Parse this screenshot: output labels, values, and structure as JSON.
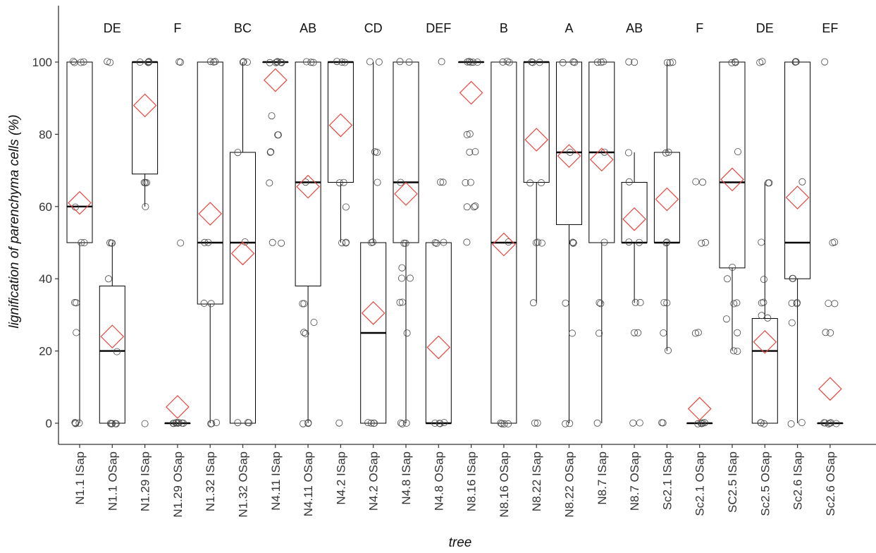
{
  "chart_data": {
    "type": "boxplot",
    "xlabel": "tree",
    "ylabel": "lignification of parenchyma cells (%)",
    "ylim": [
      -5,
      115
    ],
    "yticks": [
      0,
      20,
      40,
      60,
      80,
      100
    ],
    "grid": false,
    "legend": "none",
    "colors": {
      "box": "#000000",
      "mean_marker": "#e8473f",
      "points": "#000000"
    },
    "categories": [
      "N1.1 ISap",
      "N1.1 OSap",
      "N1.29 ISap",
      "N1.29 OSap",
      "N1.32 ISap",
      "N1.32 OSap",
      "N4.11 ISap",
      "N4.11 OSap",
      "N4.2 ISap",
      "N4.2 OSap",
      "N4.8 ISap",
      "N4.8 OSap",
      "N8.16 ISap",
      "N8.16 OSap",
      "N8.22 ISap",
      "N8.22 OSap",
      "N8.7 ISap",
      "N8.7 OSap",
      "Sc2.1 ISap",
      "Sc2.1 OSap",
      "SC2.5 ISap",
      "Sc2.5 OSap",
      "Sc2.6 ISap",
      "Sc2.6 OSap"
    ],
    "boxes": [
      {
        "q1": 50,
        "median": 60,
        "q3": 100,
        "whisker_low": 0,
        "whisker_high": 100,
        "mean": 61
      },
      {
        "q1": 0,
        "median": 20,
        "q3": 38,
        "whisker_low": 0,
        "whisker_high": 50,
        "mean": 24
      },
      {
        "q1": 69,
        "median": 100,
        "q3": 100,
        "whisker_low": 60,
        "whisker_high": 100,
        "mean": 88
      },
      {
        "q1": 0,
        "median": 0,
        "q3": 0,
        "whisker_low": 0,
        "whisker_high": 0,
        "mean": 4.5
      },
      {
        "q1": 33,
        "median": 50,
        "q3": 100,
        "whisker_low": 0,
        "whisker_high": 100,
        "mean": 58
      },
      {
        "q1": 0,
        "median": 50,
        "q3": 75,
        "whisker_low": 0,
        "whisker_high": 100,
        "mean": 47
      },
      {
        "q1": 100,
        "median": 100,
        "q3": 100,
        "whisker_low": 100,
        "whisker_high": 100,
        "mean": 95
      },
      {
        "q1": 38,
        "median": 66.7,
        "q3": 100,
        "whisker_low": 0,
        "whisker_high": 100,
        "mean": 65.5
      },
      {
        "q1": 66.7,
        "median": 100,
        "q3": 100,
        "whisker_low": 50,
        "whisker_high": 100,
        "mean": 82.5
      },
      {
        "q1": 0,
        "median": 25,
        "q3": 50,
        "whisker_low": 0,
        "whisker_high": 100,
        "mean": 30.5
      },
      {
        "q1": 50,
        "median": 66.7,
        "q3": 100,
        "whisker_low": 0,
        "whisker_high": 100,
        "mean": 63.5
      },
      {
        "q1": 0,
        "median": 0,
        "q3": 50,
        "whisker_low": 0,
        "whisker_high": 50,
        "mean": 21
      },
      {
        "q1": 100,
        "median": 100,
        "q3": 100,
        "whisker_low": 100,
        "whisker_high": 100,
        "mean": 91.5
      },
      {
        "q1": 0,
        "median": 50,
        "q3": 100,
        "whisker_low": 0,
        "whisker_high": 100,
        "mean": 49.5
      },
      {
        "q1": 66.7,
        "median": 100,
        "q3": 100,
        "whisker_low": 33.3,
        "whisker_high": 100,
        "mean": 78.5
      },
      {
        "q1": 55,
        "median": 75,
        "q3": 100,
        "whisker_low": 0,
        "whisker_high": 100,
        "mean": 74
      },
      {
        "q1": 50,
        "median": 75,
        "q3": 100,
        "whisker_low": 0,
        "whisker_high": 100,
        "mean": 73
      },
      {
        "q1": 50,
        "median": 50,
        "q3": 66.7,
        "whisker_low": 33.3,
        "whisker_high": 75,
        "mean": 56.5
      },
      {
        "q1": 50,
        "median": 50,
        "q3": 75,
        "whisker_low": 20,
        "whisker_high": 100,
        "mean": 62
      },
      {
        "q1": 0,
        "median": 0,
        "q3": 0,
        "whisker_low": 0,
        "whisker_high": 0,
        "mean": 4
      },
      {
        "q1": 43,
        "median": 66.7,
        "q3": 100,
        "whisker_low": 20,
        "whisker_high": 100,
        "mean": 67.5
      },
      {
        "q1": 0,
        "median": 20,
        "q3": 29,
        "whisker_low": 0,
        "whisker_high": 66.7,
        "mean": 22.5
      },
      {
        "q1": 40,
        "median": 50,
        "q3": 100,
        "whisker_low": 0,
        "whisker_high": 100,
        "mean": 62.5
      },
      {
        "q1": 0,
        "median": 0,
        "q3": 0,
        "whisker_low": 0,
        "whisker_high": 0,
        "mean": 9.5
      }
    ],
    "letters": [
      {
        "category": "N1.1 OSap",
        "label": "DE"
      },
      {
        "category": "N1.29 OSap",
        "label": "F"
      },
      {
        "category": "N1.32 OSap",
        "label": "BC"
      },
      {
        "category": "N4.11 OSap",
        "label": "AB"
      },
      {
        "category": "N4.2 OSap",
        "label": "CD"
      },
      {
        "category": "N4.8 OSap",
        "label": "DEF"
      },
      {
        "category": "N8.16 OSap",
        "label": "B"
      },
      {
        "category": "N8.22 OSap",
        "label": "A"
      },
      {
        "category": "N8.7 OSap",
        "label": "AB"
      },
      {
        "category": "Sc2.1 OSap",
        "label": "F"
      },
      {
        "category": "Sc2.5 OSap",
        "label": "DE"
      },
      {
        "category": "Sc2.6 OSap",
        "label": "EF"
      }
    ],
    "points": [
      [
        100,
        100,
        100,
        100,
        60,
        50,
        50,
        33.3,
        33.3,
        25,
        0,
        0,
        0,
        0
      ],
      [
        100,
        100,
        50,
        50,
        50,
        40,
        20,
        0,
        0,
        0,
        0,
        0
      ],
      [
        100,
        100,
        100,
        100,
        100,
        66.7,
        66.7,
        66.7,
        60,
        0
      ],
      [
        100,
        100,
        50,
        0,
        0,
        0,
        0,
        0,
        0,
        0,
        0
      ],
      [
        100,
        100,
        100,
        50,
        50,
        33.3,
        33.3,
        0,
        0,
        0
      ],
      [
        100,
        100,
        100,
        75,
        50,
        0,
        0,
        0
      ],
      [
        100,
        100,
        100,
        100,
        100,
        100,
        85,
        80,
        80,
        75,
        75,
        66.7,
        50,
        50
      ],
      [
        100,
        100,
        100,
        66.7,
        33.3,
        33.3,
        28,
        25,
        25,
        0,
        0,
        0
      ],
      [
        100,
        100,
        100,
        66.7,
        66.7,
        60,
        50,
        50,
        50,
        0
      ],
      [
        100,
        100,
        75,
        75,
        66.7,
        50,
        50,
        0,
        0,
        0,
        0
      ],
      [
        100,
        100,
        66.7,
        50,
        50,
        43,
        40,
        40,
        33.3,
        33.3,
        25,
        0,
        0,
        0
      ],
      [
        100,
        66.7,
        66.7,
        50,
        50,
        50,
        0,
        0,
        0,
        0
      ],
      [
        100,
        100,
        100,
        100,
        100,
        80,
        80,
        75,
        75,
        66.7,
        66.7,
        60,
        60,
        60,
        50
      ],
      [
        100,
        100,
        100,
        50,
        0,
        0,
        0,
        0
      ],
      [
        100,
        100,
        100,
        66.7,
        66.7,
        50,
        50,
        50,
        33.3,
        0,
        0
      ],
      [
        100,
        100,
        100,
        75,
        50,
        50,
        50,
        33.3,
        25,
        0,
        0
      ],
      [
        100,
        100,
        100,
        75,
        50,
        33.3,
        33.3,
        25,
        0
      ],
      [
        100,
        100,
        75,
        66.7,
        50,
        50,
        33.3,
        33.3,
        25,
        25,
        0,
        0
      ],
      [
        100,
        100,
        100,
        75,
        75,
        50,
        50,
        33.3,
        33.3,
        25,
        20,
        0,
        0
      ],
      [
        66.7,
        66.7,
        50,
        50,
        25,
        25,
        0,
        0,
        0,
        0,
        0
      ],
      [
        100,
        100,
        100,
        75,
        43,
        40,
        33.3,
        33.3,
        29,
        25,
        20,
        20
      ],
      [
        100,
        100,
        66.7,
        66.7,
        50,
        40,
        33.3,
        33.3,
        30,
        29,
        0,
        0,
        0
      ],
      [
        100,
        100,
        100,
        66.7,
        40,
        40,
        33.3,
        33.3,
        33.3,
        28,
        0,
        0
      ],
      [
        100,
        50,
        50,
        33.3,
        33.3,
        25,
        25,
        0,
        0,
        0,
        0,
        0,
        0
      ]
    ]
  }
}
